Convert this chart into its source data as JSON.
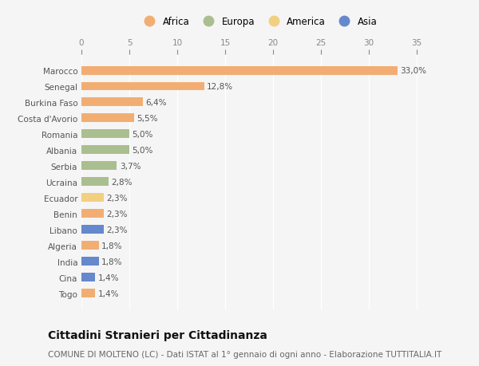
{
  "categories": [
    "Togo",
    "Cina",
    "India",
    "Algeria",
    "Libano",
    "Benin",
    "Ecuador",
    "Ucraina",
    "Serbia",
    "Albania",
    "Romania",
    "Costa d'Avorio",
    "Burkina Faso",
    "Senegal",
    "Marocco"
  ],
  "values": [
    1.4,
    1.4,
    1.8,
    1.8,
    2.3,
    2.3,
    2.3,
    2.8,
    3.7,
    5.0,
    5.0,
    5.5,
    6.4,
    12.8,
    33.0
  ],
  "labels": [
    "1,4%",
    "1,4%",
    "1,8%",
    "1,8%",
    "2,3%",
    "2,3%",
    "2,3%",
    "2,8%",
    "3,7%",
    "5,0%",
    "5,0%",
    "5,5%",
    "6,4%",
    "12,8%",
    "33,0%"
  ],
  "continents": [
    "Africa",
    "Asia",
    "Asia",
    "Africa",
    "Asia",
    "Africa",
    "America",
    "Europa",
    "Europa",
    "Europa",
    "Europa",
    "Africa",
    "Africa",
    "Africa",
    "Africa"
  ],
  "colors": {
    "Africa": "#F2AE72",
    "Europa": "#ABBE90",
    "America": "#F2D080",
    "Asia": "#6688CC"
  },
  "legend_order": [
    "Africa",
    "Europa",
    "America",
    "Asia"
  ],
  "title": "Cittadini Stranieri per Cittadinanza",
  "subtitle": "COMUNE DI MOLTENO (LC) - Dati ISTAT al 1° gennaio di ogni anno - Elaborazione TUTTITALIA.IT",
  "xlim": [
    0,
    37
  ],
  "xticks": [
    0,
    5,
    10,
    15,
    20,
    25,
    30,
    35
  ],
  "background_color": "#f5f5f5",
  "bar_height": 0.55,
  "label_fontsize": 7.5,
  "title_fontsize": 10,
  "subtitle_fontsize": 7.5,
  "ytick_fontsize": 7.5,
  "xtick_fontsize": 7.5
}
